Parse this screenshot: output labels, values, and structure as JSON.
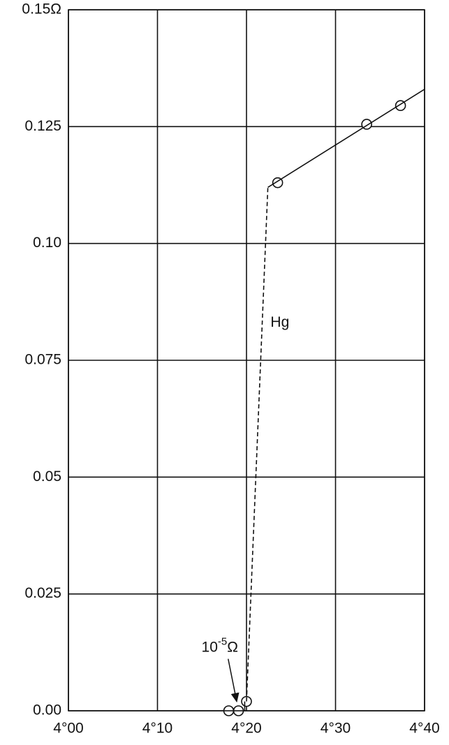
{
  "chart_data": {
    "type": "line",
    "xlim": [
      4.0,
      4.4
    ],
    "ylim": [
      0,
      0.15
    ],
    "xticks": [
      {
        "value": 4.0,
        "label": "4°00"
      },
      {
        "value": 4.1,
        "label": "4°10"
      },
      {
        "value": 4.2,
        "label": "4°20"
      },
      {
        "value": 4.3,
        "label": "4°30"
      },
      {
        "value": 4.4,
        "label": "4°40"
      }
    ],
    "yticks": [
      {
        "value": 0,
        "label": "0.00"
      },
      0.025,
      0.05,
      0.075,
      {
        "value": 0.1,
        "label": "0.10"
      },
      0.125,
      {
        "value": 0.15,
        "label": "0.15Ω"
      }
    ],
    "grid": true,
    "color": "#111111",
    "series": [
      {
        "x": [
          4.18,
          4.191,
          4.2,
          4.235,
          4.335,
          4.373
        ],
        "values": [
          0,
          0,
          0.002,
          0.113,
          0.1255,
          0.1295
        ],
        "marker": "circle",
        "line": "none"
      },
      {
        "x": [
          4.198,
          4.198
        ],
        "values": [
          0,
          0.002
        ],
        "line": "solid"
      },
      {
        "x": [
          4.2,
          4.224
        ],
        "values": [
          0.002,
          0.112
        ],
        "line": "dashed"
      },
      {
        "x": [
          4.224,
          4.4
        ],
        "values": [
          0.112,
          0.133
        ],
        "line": "solid"
      }
    ],
    "annotations": [
      {
        "text": "Hg",
        "x": 4.227,
        "y": 0.083
      },
      {
        "base": "10",
        "sup": "-5",
        "unit": "Ω",
        "x": 4.17,
        "y": 0.0135,
        "arrow_to": [
          4.189,
          0.002
        ]
      }
    ]
  }
}
